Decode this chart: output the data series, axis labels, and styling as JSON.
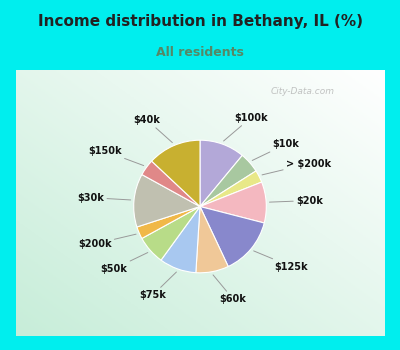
{
  "title": "Income distribution in Bethany, IL (%)",
  "subtitle": "All residents",
  "title_color": "#222222",
  "subtitle_color": "#558866",
  "bg_outer": "#00eeee",
  "watermark": "City-Data.com",
  "labels": [
    "$100k",
    "$10k",
    "> $200k",
    "$20k",
    "$125k",
    "$60k",
    "$75k",
    "$50k",
    "$200k",
    "$30k",
    "$150k",
    "$40k"
  ],
  "values": [
    11,
    5,
    3,
    10,
    14,
    8,
    9,
    7,
    3,
    13,
    4,
    13
  ],
  "colors": [
    "#b3a8d8",
    "#a8c8a0",
    "#e8e888",
    "#f4b8c0",
    "#8888cc",
    "#f0c898",
    "#a8c8f0",
    "#b8dc88",
    "#f0b848",
    "#c0c0b0",
    "#e08888",
    "#c8b030"
  ],
  "startangle": 90,
  "label_fontsize": 7.0,
  "border_width": 8
}
